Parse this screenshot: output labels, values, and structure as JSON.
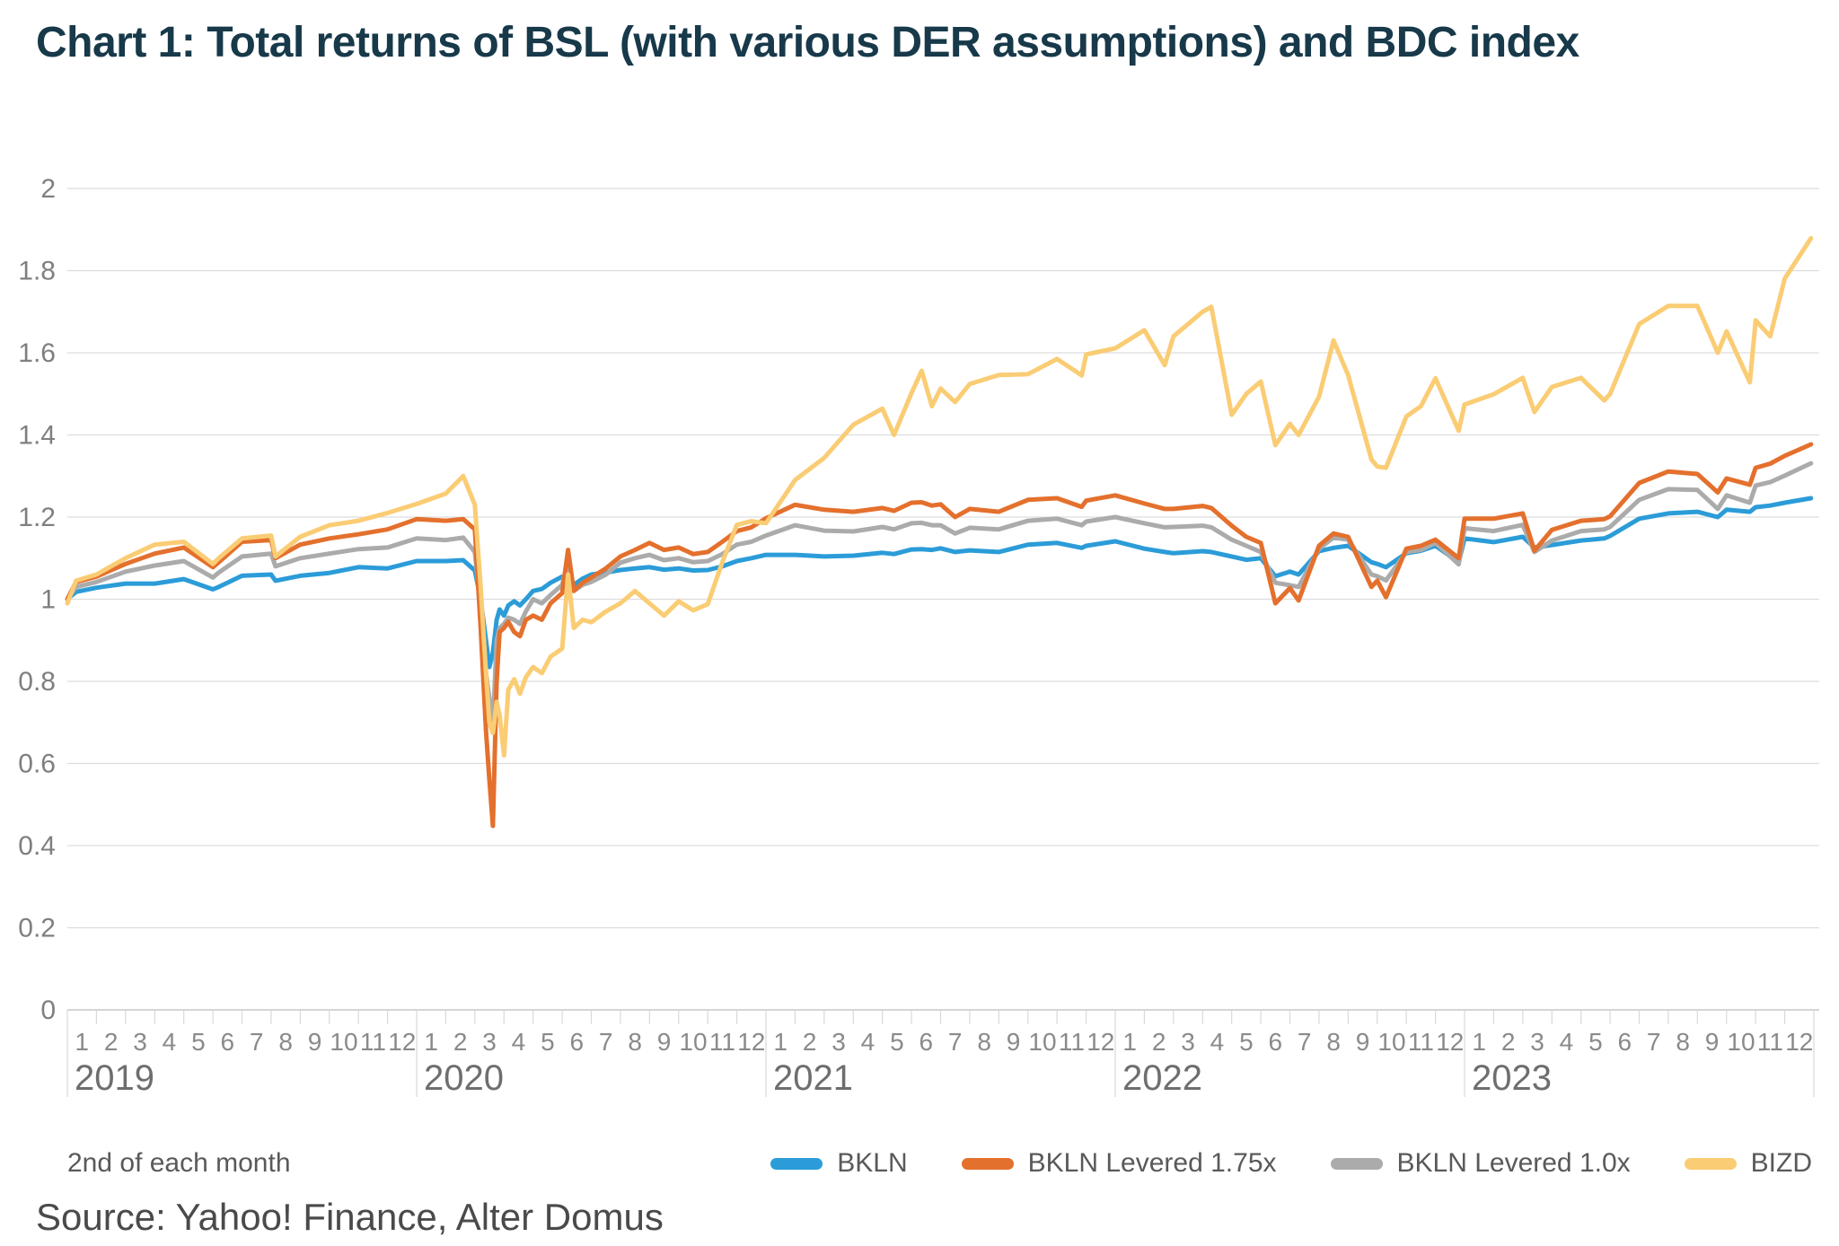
{
  "title": "Chart 1: Total returns of BSL (with various DER assumptions) and BDC index",
  "footer": {
    "source": "Source: Yahoo! Finance, Alter Domus"
  },
  "chart_data": {
    "type": "line",
    "title": "Chart 1: Total returns of BSL (with various DER assumptions) and BDC index",
    "note": "2nd of each month",
    "xlabel": "",
    "ylabel": "",
    "grid": "horizontal",
    "legend_position": "bottom",
    "ylim": [
      0,
      2
    ],
    "y_ticks": [
      "0",
      "0.2",
      "0.4",
      "0.6",
      "0.8",
      "1",
      "1.2",
      "1.4",
      "1.6",
      "1.8",
      "2"
    ],
    "years": [
      "2019",
      "2020",
      "2021",
      "2022",
      "2023"
    ],
    "month_labels": [
      "1",
      "2",
      "3",
      "4",
      "5",
      "6",
      "7",
      "8",
      "9",
      "10",
      "11",
      "12"
    ],
    "x_unit": "months since Jan 2019 (sampled the 2nd of each month)",
    "x": [
      0,
      0.3,
      1,
      2,
      3,
      4,
      5,
      5.2,
      6,
      7,
      7.15,
      8,
      9,
      10,
      11,
      12,
      13,
      13.6,
      14,
      14.2,
      14.38,
      14.5,
      14.62,
      14.75,
      14.85,
      15,
      15.15,
      15.35,
      15.55,
      15.75,
      16,
      16.3,
      16.6,
      17,
      17.2,
      17.4,
      17.7,
      18,
      18.5,
      19,
      19.5,
      20,
      20.5,
      21,
      21.5,
      22,
      22.5,
      23,
      23.5,
      24,
      25,
      26,
      27,
      28,
      28.4,
      29,
      29.35,
      29.7,
      30,
      30.5,
      31,
      32,
      33,
      34,
      34.85,
      35,
      36,
      37,
      37.7,
      38,
      39,
      39.3,
      40,
      40.5,
      41,
      41.5,
      42,
      42.3,
      43,
      43.5,
      44,
      44.8,
      45,
      45.3,
      46,
      46.5,
      47,
      47.8,
      48,
      49,
      50,
      50.4,
      51,
      52,
      52.8,
      53,
      54,
      55,
      56,
      56.7,
      57,
      57.8,
      58,
      58.5,
      59,
      59.9
    ],
    "series": [
      {
        "name": "BKLN",
        "color": "#2B9CD8",
        "values": [
          1.0,
          1.018,
          1.028,
          1.038,
          1.038,
          1.049,
          1.024,
          1.03,
          1.057,
          1.06,
          1.045,
          1.057,
          1.064,
          1.078,
          1.075,
          1.093,
          1.093,
          1.095,
          1.07,
          1.0,
          0.9,
          0.835,
          0.87,
          0.95,
          0.975,
          0.96,
          0.985,
          0.995,
          0.985,
          1.0,
          1.02,
          1.025,
          1.04,
          1.055,
          1.06,
          1.035,
          1.05,
          1.06,
          1.065,
          1.071,
          1.075,
          1.078,
          1.072,
          1.075,
          1.07,
          1.071,
          1.08,
          1.093,
          1.1,
          1.108,
          1.108,
          1.104,
          1.106,
          1.113,
          1.11,
          1.121,
          1.122,
          1.12,
          1.124,
          1.115,
          1.119,
          1.115,
          1.133,
          1.137,
          1.125,
          1.13,
          1.141,
          1.123,
          1.115,
          1.112,
          1.117,
          1.115,
          1.104,
          1.096,
          1.1,
          1.056,
          1.067,
          1.06,
          1.117,
          1.125,
          1.13,
          1.09,
          1.086,
          1.078,
          1.112,
          1.118,
          1.13,
          1.09,
          1.148,
          1.139,
          1.152,
          1.126,
          1.132,
          1.143,
          1.148,
          1.154,
          1.196,
          1.209,
          1.213,
          1.2,
          1.218,
          1.213,
          1.224,
          1.228,
          1.235,
          1.246
        ]
      },
      {
        "name": "BKLN Levered 1.75x",
        "color": "#E4702D",
        "values": [
          1.0,
          1.042,
          1.055,
          1.086,
          1.111,
          1.126,
          1.078,
          1.09,
          1.14,
          1.144,
          1.1,
          1.133,
          1.148,
          1.158,
          1.17,
          1.195,
          1.191,
          1.195,
          1.17,
          0.93,
          0.68,
          0.56,
          0.448,
          0.8,
          0.92,
          0.93,
          0.945,
          0.92,
          0.91,
          0.95,
          0.96,
          0.95,
          0.99,
          1.015,
          1.12,
          1.02,
          1.04,
          1.053,
          1.075,
          1.104,
          1.12,
          1.137,
          1.12,
          1.126,
          1.11,
          1.115,
          1.14,
          1.166,
          1.175,
          1.197,
          1.23,
          1.218,
          1.213,
          1.222,
          1.215,
          1.235,
          1.236,
          1.228,
          1.231,
          1.2,
          1.22,
          1.213,
          1.242,
          1.246,
          1.225,
          1.24,
          1.253,
          1.233,
          1.22,
          1.22,
          1.227,
          1.222,
          1.179,
          1.152,
          1.137,
          0.99,
          1.027,
          0.997,
          1.13,
          1.16,
          1.152,
          1.03,
          1.045,
          1.005,
          1.123,
          1.13,
          1.145,
          1.1,
          1.196,
          1.196,
          1.209,
          1.118,
          1.169,
          1.191,
          1.195,
          1.202,
          1.283,
          1.311,
          1.305,
          1.26,
          1.294,
          1.279,
          1.32,
          1.33,
          1.349,
          1.377
        ]
      },
      {
        "name": "BKLN Levered 1.0x",
        "color": "#ABABAB",
        "values": [
          1.0,
          1.03,
          1.042,
          1.067,
          1.082,
          1.093,
          1.053,
          1.065,
          1.104,
          1.111,
          1.08,
          1.1,
          1.111,
          1.122,
          1.126,
          1.148,
          1.144,
          1.15,
          1.115,
          0.97,
          0.82,
          0.76,
          0.69,
          0.9,
          0.93,
          0.94,
          0.955,
          0.95,
          0.94,
          0.97,
          1.0,
          0.99,
          1.01,
          1.035,
          1.095,
          1.02,
          1.035,
          1.042,
          1.06,
          1.089,
          1.1,
          1.108,
          1.095,
          1.1,
          1.09,
          1.093,
          1.11,
          1.133,
          1.14,
          1.155,
          1.18,
          1.167,
          1.165,
          1.176,
          1.17,
          1.185,
          1.186,
          1.18,
          1.18,
          1.16,
          1.174,
          1.17,
          1.191,
          1.196,
          1.18,
          1.189,
          1.2,
          1.185,
          1.175,
          1.176,
          1.179,
          1.175,
          1.145,
          1.13,
          1.115,
          1.04,
          1.034,
          1.03,
          1.123,
          1.15,
          1.145,
          1.06,
          1.056,
          1.046,
          1.115,
          1.12,
          1.137,
          1.085,
          1.173,
          1.166,
          1.181,
          1.115,
          1.143,
          1.166,
          1.17,
          1.176,
          1.242,
          1.268,
          1.266,
          1.22,
          1.253,
          1.235,
          1.277,
          1.285,
          1.301,
          1.331
        ]
      },
      {
        "name": "BIZD",
        "color": "#FACC74",
        "values": [
          0.99,
          1.045,
          1.06,
          1.1,
          1.133,
          1.14,
          1.086,
          1.1,
          1.148,
          1.155,
          1.104,
          1.152,
          1.18,
          1.191,
          1.21,
          1.232,
          1.257,
          1.3,
          1.23,
          1.03,
          0.82,
          0.7,
          0.674,
          0.75,
          0.718,
          0.62,
          0.78,
          0.805,
          0.77,
          0.81,
          0.835,
          0.82,
          0.86,
          0.88,
          1.06,
          0.93,
          0.95,
          0.944,
          0.97,
          0.99,
          1.02,
          0.99,
          0.96,
          0.995,
          0.973,
          0.988,
          1.09,
          1.181,
          1.19,
          1.185,
          1.29,
          1.344,
          1.425,
          1.464,
          1.4,
          1.502,
          1.556,
          1.47,
          1.513,
          1.48,
          1.524,
          1.546,
          1.548,
          1.585,
          1.545,
          1.596,
          1.611,
          1.655,
          1.57,
          1.64,
          1.7,
          1.712,
          1.449,
          1.5,
          1.53,
          1.375,
          1.427,
          1.4,
          1.493,
          1.63,
          1.546,
          1.34,
          1.323,
          1.32,
          1.445,
          1.47,
          1.538,
          1.41,
          1.474,
          1.499,
          1.539,
          1.456,
          1.517,
          1.539,
          1.484,
          1.5,
          1.67,
          1.714,
          1.714,
          1.6,
          1.652,
          1.528,
          1.679,
          1.64,
          1.781,
          1.879
        ]
      }
    ]
  }
}
